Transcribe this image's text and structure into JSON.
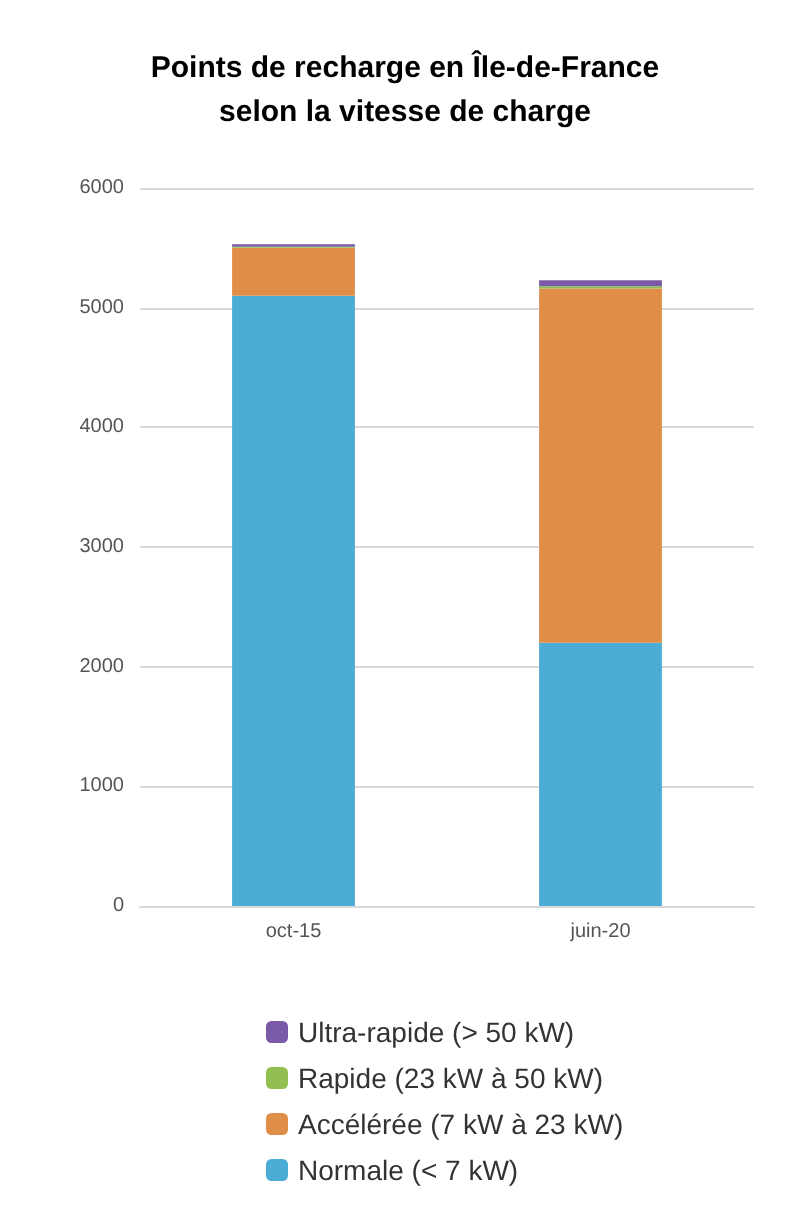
{
  "chart_data": {
    "type": "bar",
    "title": "Points de recharge en Île-de-France\nselon la vitesse de charge",
    "categories": [
      "oct-15",
      "juin-20"
    ],
    "stacked": true,
    "series": [
      {
        "name": "Normale (< 7 kW)",
        "color": "#4bacd6",
        "values": [
          5100,
          2200
        ]
      },
      {
        "name": "Accélérée (7 kW à 23 kW)",
        "color": "#e08d48",
        "values": [
          400,
          2960
        ]
      },
      {
        "name": "Rapide (23 kW à 50 kW)",
        "color": "#92c050",
        "values": [
          10,
          20
        ]
      },
      {
        "name": "Ultra-rapide (> 50 kW)",
        "color": "#7a5aa6",
        "values": [
          20,
          50
        ]
      }
    ],
    "ylim": [
      0,
      6000
    ],
    "yticks": [
      0,
      1000,
      2000,
      3000,
      4000,
      5000,
      6000
    ],
    "grid": "y",
    "legend": "bottom"
  }
}
